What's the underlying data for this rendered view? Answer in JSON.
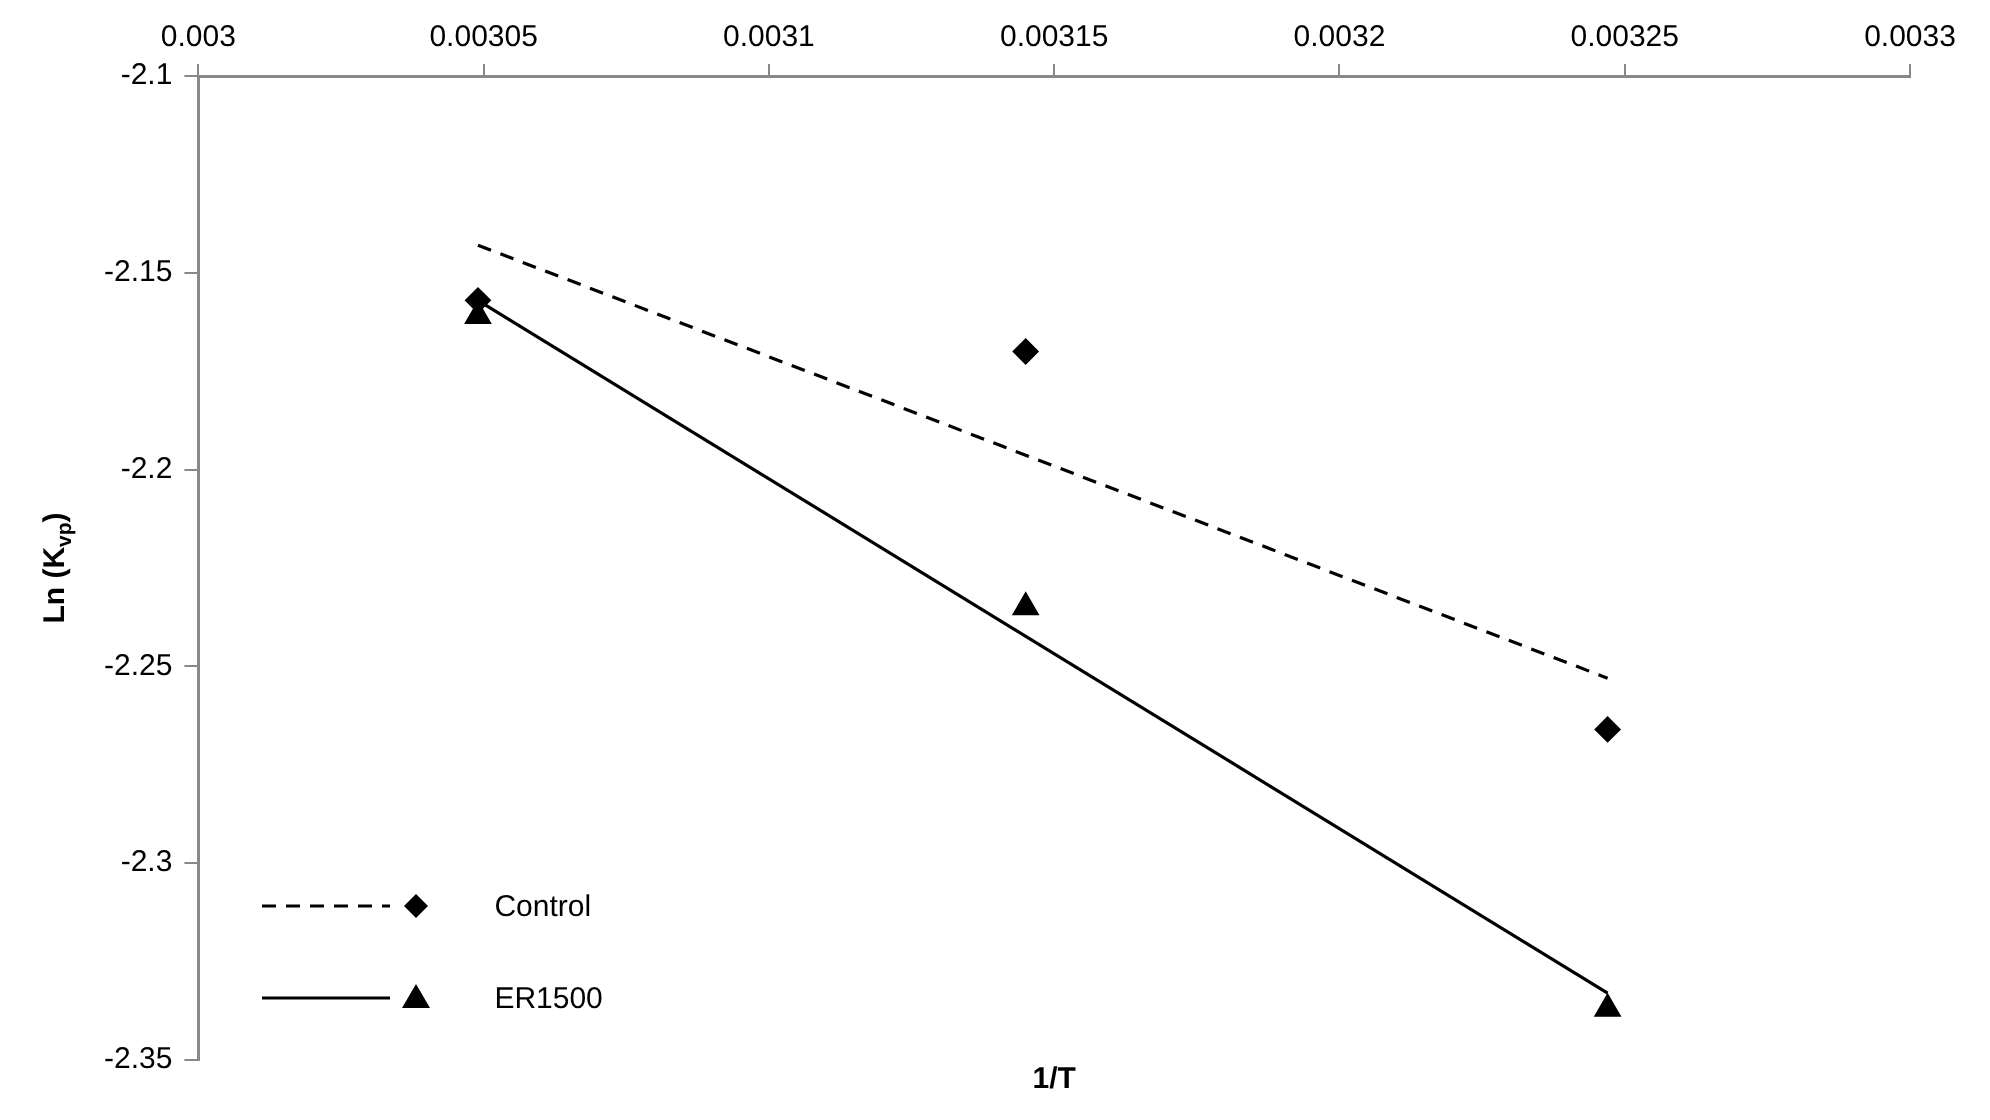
{
  "chart_data": {
    "type": "scatter",
    "xlabel": "1/T",
    "ylabel": "Ln (K$_{vp}$)",
    "xlim": [
      0.003,
      0.0033
    ],
    "xticks": [
      0.003,
      0.00305,
      0.0031,
      0.00315,
      0.0032,
      0.00325,
      0.0033
    ],
    "ylim": [
      -2.35,
      -2.1
    ],
    "yticks": [
      -2.35,
      -2.3,
      -2.25,
      -2.2,
      -2.15,
      -2.1
    ],
    "grid": false,
    "legend": "bottom left",
    "series": [
      {
        "name": "Control",
        "marker": "diamond",
        "color": "#000000",
        "x": [
          0.003049,
          0.003145,
          0.003247
        ],
        "values": [
          -2.157,
          -2.17,
          -2.266
        ]
      },
      {
        "name": "ER1500",
        "marker": "triangle",
        "color": "#000000",
        "x": [
          0.003049,
          0.003145,
          0.003247
        ],
        "values": [
          -2.161,
          -2.235,
          -2.337
        ]
      },
      {
        "type": "line",
        "line_style": "dashed",
        "marker": "none",
        "color": "#000000",
        "x": [
          0.003049,
          0.003247
        ],
        "values": [
          -2.143,
          -2.253
        ]
      },
      {
        "type": "line",
        "line_style": "solid",
        "marker": "none",
        "color": "#000000",
        "x": [
          0.003049,
          0.003247
        ],
        "values": [
          -2.157,
          -2.333
        ]
      }
    ]
  }
}
